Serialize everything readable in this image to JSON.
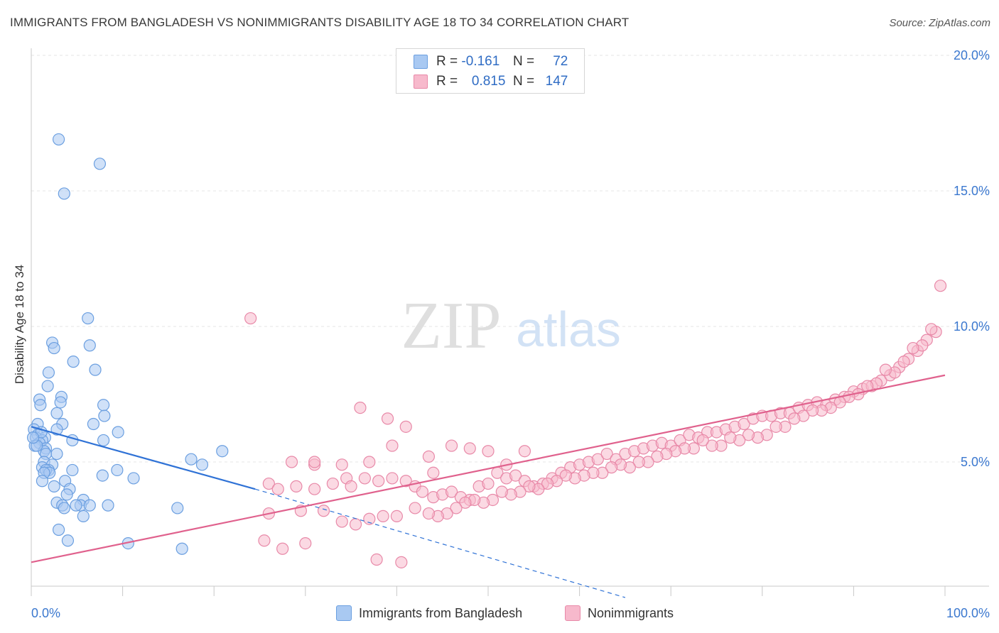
{
  "header": {
    "title": "IMMIGRANTS FROM BANGLADESH VS NONIMMIGRANTS DISABILITY AGE 18 TO 34 CORRELATION CHART",
    "source": "Source: ZipAtlas.com"
  },
  "watermark": {
    "zip": "ZIP",
    "atlas": "atlas"
  },
  "legend": {
    "rows": [
      {
        "r_label": "R =",
        "r_value": "-0.161",
        "n_label": "N =",
        "n_value": "72",
        "color": "#a9c9f2",
        "border": "#6b9fe0"
      },
      {
        "r_label": "R =",
        "r_value": "0.815",
        "n_label": "N =",
        "n_value": "147",
        "color": "#f7b9cc",
        "border": "#e889a8"
      }
    ]
  },
  "bottom_legend": {
    "items": [
      {
        "label": "Immigrants from Bangladesh",
        "color": "#a9c9f2",
        "border": "#6b9fe0"
      },
      {
        "label": "Nonimmigrants",
        "color": "#f7b9cc",
        "border": "#e889a8"
      }
    ]
  },
  "chart_data": {
    "type": "scatter",
    "ylabel": "Disability Age 18 to 34",
    "xlim": [
      0,
      100
    ],
    "ylim": [
      0,
      20
    ],
    "x_tick_labels": [
      "0.0%",
      "100.0%"
    ],
    "y_ticks": [
      5,
      10,
      15,
      20
    ],
    "y_tick_labels": [
      "5.0%",
      "10.0%",
      "15.0%",
      "20.0%"
    ],
    "grid": true,
    "series": [
      {
        "name": "Immigrants from Bangladesh",
        "color": "#a9c9f2",
        "stroke": "#6b9fe0",
        "trend": {
          "solid": [
            [
              0,
              6.3
            ],
            [
              24.5,
              4.0
            ]
          ],
          "dashed": [
            [
              24.5,
              4.0
            ],
            [
              65,
              0.0
            ]
          ],
          "color": "#2f72d6"
        },
        "points": [
          [
            3.0,
            16.9
          ],
          [
            7.5,
            16.0
          ],
          [
            3.6,
            14.9
          ],
          [
            6.2,
            10.3
          ],
          [
            2.3,
            9.4
          ],
          [
            2.5,
            9.2
          ],
          [
            6.4,
            9.3
          ],
          [
            4.6,
            8.7
          ],
          [
            1.9,
            8.3
          ],
          [
            7.0,
            8.4
          ],
          [
            1.8,
            7.8
          ],
          [
            0.9,
            7.3
          ],
          [
            3.3,
            7.4
          ],
          [
            1.0,
            7.1
          ],
          [
            3.2,
            7.2
          ],
          [
            7.9,
            7.1
          ],
          [
            2.8,
            6.8
          ],
          [
            8.0,
            6.7
          ],
          [
            0.7,
            6.4
          ],
          [
            3.4,
            6.4
          ],
          [
            6.8,
            6.4
          ],
          [
            0.3,
            6.2
          ],
          [
            2.8,
            6.2
          ],
          [
            9.5,
            6.1
          ],
          [
            0.7,
            6.0
          ],
          [
            1.5,
            5.9
          ],
          [
            0.5,
            5.9
          ],
          [
            1.2,
            5.8
          ],
          [
            0.9,
            5.7
          ],
          [
            0.4,
            5.6
          ],
          [
            4.5,
            5.8
          ],
          [
            7.9,
            5.8
          ],
          [
            1.6,
            5.5
          ],
          [
            1.4,
            5.4
          ],
          [
            1.6,
            5.3
          ],
          [
            2.8,
            5.3
          ],
          [
            20.9,
            5.4
          ],
          [
            17.5,
            5.1
          ],
          [
            1.4,
            5.0
          ],
          [
            2.3,
            4.9
          ],
          [
            18.7,
            4.9
          ],
          [
            1.2,
            4.8
          ],
          [
            1.9,
            4.7
          ],
          [
            1.6,
            4.7
          ],
          [
            4.5,
            4.7
          ],
          [
            9.4,
            4.7
          ],
          [
            2.0,
            4.6
          ],
          [
            1.4,
            4.6
          ],
          [
            7.8,
            4.5
          ],
          [
            11.2,
            4.4
          ],
          [
            1.2,
            4.3
          ],
          [
            3.7,
            4.3
          ],
          [
            2.5,
            4.1
          ],
          [
            4.2,
            4.0
          ],
          [
            3.9,
            3.8
          ],
          [
            5.7,
            3.6
          ],
          [
            2.8,
            3.5
          ],
          [
            5.4,
            3.4
          ],
          [
            8.4,
            3.4
          ],
          [
            6.4,
            3.4
          ],
          [
            3.4,
            3.4
          ],
          [
            3.6,
            3.3
          ],
          [
            4.9,
            3.4
          ],
          [
            16.0,
            3.3
          ],
          [
            5.7,
            3.0
          ],
          [
            3.0,
            2.5
          ],
          [
            4.0,
            2.1
          ],
          [
            10.6,
            2.0
          ],
          [
            16.5,
            1.8
          ],
          [
            0.6,
            5.6
          ],
          [
            1.1,
            6.1
          ],
          [
            0.2,
            5.9
          ]
        ]
      },
      {
        "name": "Nonimmigrants",
        "color": "#f7b9cc",
        "stroke": "#e889a8",
        "trend": {
          "solid": [
            [
              0,
              1.3
            ],
            [
              100,
              8.2
            ]
          ],
          "color": "#e0618d"
        },
        "points": [
          [
            24.0,
            10.3
          ],
          [
            36.0,
            7.0
          ],
          [
            39.0,
            6.6
          ],
          [
            41.0,
            6.3
          ],
          [
            39.5,
            5.6
          ],
          [
            37.0,
            5.0
          ],
          [
            34.0,
            4.9
          ],
          [
            31.0,
            4.9
          ],
          [
            28.5,
            5.0
          ],
          [
            43.5,
            5.2
          ],
          [
            26.0,
            4.2
          ],
          [
            27.0,
            4.0
          ],
          [
            29.0,
            4.1
          ],
          [
            31.0,
            4.0
          ],
          [
            33.0,
            4.2
          ],
          [
            34.5,
            4.4
          ],
          [
            36.5,
            4.4
          ],
          [
            38.0,
            4.3
          ],
          [
            39.5,
            4.4
          ],
          [
            41.0,
            4.3
          ],
          [
            42.0,
            4.1
          ],
          [
            42.8,
            3.9
          ],
          [
            44.0,
            3.7
          ],
          [
            45.0,
            3.8
          ],
          [
            46.0,
            3.9
          ],
          [
            47.0,
            3.7
          ],
          [
            48.0,
            3.6
          ],
          [
            49.0,
            4.1
          ],
          [
            50.0,
            4.2
          ],
          [
            51.0,
            4.6
          ],
          [
            52.0,
            4.4
          ],
          [
            53.0,
            4.5
          ],
          [
            54.0,
            4.3
          ],
          [
            55.0,
            4.1
          ],
          [
            56.0,
            4.2
          ],
          [
            57.0,
            4.4
          ],
          [
            58.0,
            4.6
          ],
          [
            59.0,
            4.8
          ],
          [
            60.0,
            4.9
          ],
          [
            61.0,
            5.0
          ],
          [
            62.0,
            5.1
          ],
          [
            63.0,
            5.3
          ],
          [
            64.0,
            5.1
          ],
          [
            65.0,
            5.3
          ],
          [
            66.0,
            5.4
          ],
          [
            67.0,
            5.5
          ],
          [
            68.0,
            5.6
          ],
          [
            69.0,
            5.7
          ],
          [
            70.0,
            5.6
          ],
          [
            71.0,
            5.8
          ],
          [
            72.0,
            6.0
          ],
          [
            73.0,
            5.9
          ],
          [
            74.0,
            6.1
          ],
          [
            75.0,
            6.1
          ],
          [
            76.0,
            6.2
          ],
          [
            77.0,
            6.3
          ],
          [
            78.0,
            6.4
          ],
          [
            79.0,
            6.6
          ],
          [
            80.0,
            6.7
          ],
          [
            81.0,
            6.7
          ],
          [
            82.0,
            6.8
          ],
          [
            83.0,
            6.8
          ],
          [
            84.0,
            7.0
          ],
          [
            85.0,
            7.1
          ],
          [
            86.0,
            7.2
          ],
          [
            87.0,
            7.1
          ],
          [
            88.0,
            7.3
          ],
          [
            89.0,
            7.4
          ],
          [
            90.0,
            7.6
          ],
          [
            91.0,
            7.7
          ],
          [
            92.0,
            7.8
          ],
          [
            93.0,
            8.0
          ],
          [
            94.0,
            8.2
          ],
          [
            95.0,
            8.5
          ],
          [
            96.0,
            8.8
          ],
          [
            97.0,
            9.1
          ],
          [
            98.0,
            9.5
          ],
          [
            99.0,
            9.8
          ],
          [
            99.5,
            11.5
          ],
          [
            98.5,
            9.9
          ],
          [
            97.5,
            9.3
          ],
          [
            96.5,
            9.2
          ],
          [
            95.5,
            8.7
          ],
          [
            94.5,
            8.3
          ],
          [
            93.5,
            8.4
          ],
          [
            92.5,
            7.9
          ],
          [
            91.5,
            7.8
          ],
          [
            90.5,
            7.5
          ],
          [
            89.5,
            7.4
          ],
          [
            88.5,
            7.2
          ],
          [
            87.5,
            7.0
          ],
          [
            86.5,
            6.9
          ],
          [
            85.5,
            6.9
          ],
          [
            84.5,
            6.7
          ],
          [
            83.5,
            6.6
          ],
          [
            82.5,
            6.3
          ],
          [
            81.5,
            6.3
          ],
          [
            80.5,
            6.0
          ],
          [
            79.5,
            5.9
          ],
          [
            78.5,
            6.0
          ],
          [
            77.5,
            5.8
          ],
          [
            76.5,
            5.9
          ],
          [
            75.5,
            5.6
          ],
          [
            74.5,
            5.6
          ],
          [
            73.5,
            5.8
          ],
          [
            72.5,
            5.5
          ],
          [
            71.5,
            5.5
          ],
          [
            70.5,
            5.4
          ],
          [
            69.5,
            5.3
          ],
          [
            68.5,
            5.2
          ],
          [
            67.5,
            5.0
          ],
          [
            66.5,
            5.0
          ],
          [
            65.5,
            4.8
          ],
          [
            64.5,
            4.9
          ],
          [
            63.5,
            4.8
          ],
          [
            62.5,
            4.6
          ],
          [
            61.5,
            4.6
          ],
          [
            60.5,
            4.5
          ],
          [
            59.5,
            4.4
          ],
          [
            58.5,
            4.5
          ],
          [
            57.5,
            4.3
          ],
          [
            56.5,
            4.2
          ],
          [
            55.5,
            4.0
          ],
          [
            54.5,
            4.1
          ],
          [
            53.5,
            3.9
          ],
          [
            52.5,
            3.8
          ],
          [
            51.5,
            3.9
          ],
          [
            50.5,
            3.6
          ],
          [
            49.5,
            3.5
          ],
          [
            48.5,
            3.6
          ],
          [
            47.5,
            3.5
          ],
          [
            46.5,
            3.3
          ],
          [
            45.5,
            3.1
          ],
          [
            44.5,
            3.0
          ],
          [
            43.5,
            3.1
          ],
          [
            42.0,
            3.3
          ],
          [
            40.0,
            3.0
          ],
          [
            38.5,
            3.0
          ],
          [
            37.0,
            2.9
          ],
          [
            35.5,
            2.7
          ],
          [
            34.0,
            2.8
          ],
          [
            32.0,
            3.2
          ],
          [
            29.5,
            3.2
          ],
          [
            26.0,
            3.1
          ],
          [
            25.5,
            2.1
          ],
          [
            27.5,
            1.8
          ],
          [
            30.0,
            2.0
          ],
          [
            37.8,
            1.4
          ],
          [
            40.5,
            1.3
          ],
          [
            31.0,
            5.0
          ],
          [
            35.0,
            4.1
          ],
          [
            44.0,
            4.6
          ],
          [
            46.0,
            5.6
          ],
          [
            48.0,
            5.5
          ],
          [
            50.0,
            5.4
          ],
          [
            52.0,
            4.9
          ],
          [
            54.0,
            5.4
          ]
        ]
      }
    ]
  }
}
